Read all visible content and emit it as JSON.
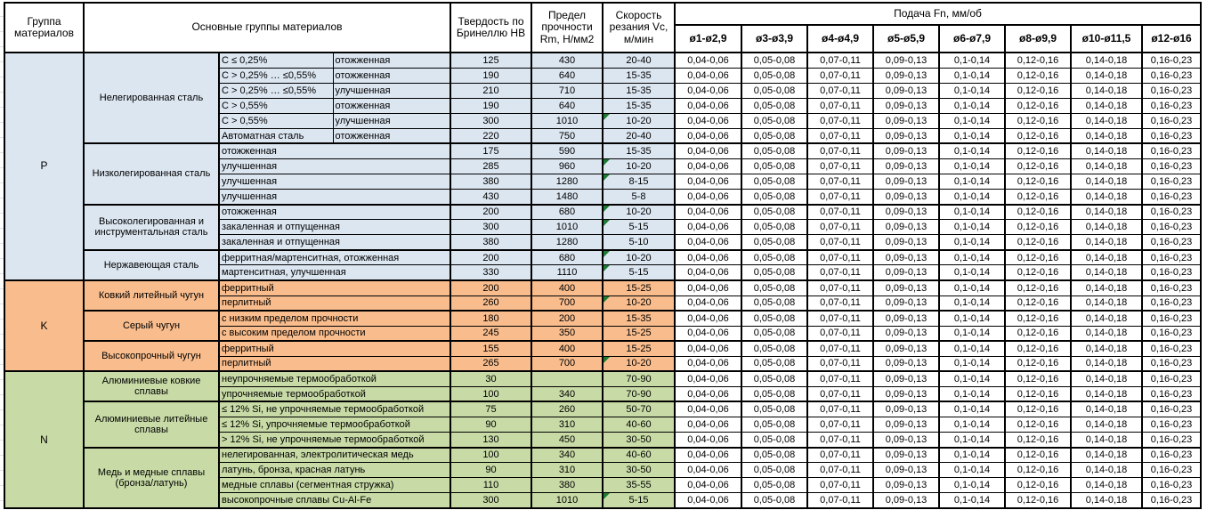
{
  "table": {
    "header": {
      "group": "Группа материалов",
      "main_groups": "Основные группы материалов",
      "hardness": "Твердость по Бринеллю НВ",
      "strength": "Предел прочности Rm, Н/мм2",
      "speed": "Скорость резания Vc, м/мин",
      "feed": "Подача Fn, мм/об",
      "feed_cols": [
        "ø1-ø2,9",
        "ø3-ø3,9",
        "ø4-ø4,9",
        "ø5-ø5,9",
        "ø6-ø7,9",
        "ø8-ø9,9",
        "ø10-ø11,5",
        "ø12-ø16"
      ]
    },
    "feed_values": [
      "0,04-0,06",
      "0,05-0,08",
      "0,07-0,11",
      "0,09-0,13",
      "0,1-0,14",
      "0,12-0,16",
      "0,14-0,18",
      "0,16-0,23"
    ],
    "colors": {
      "section_p": "#dce6f1",
      "section_k": "#f9bd8d",
      "section_n": "#c8dba6",
      "marker": "#1e7b34",
      "border": "#000000"
    },
    "sections": [
      {
        "code": "P",
        "color": "#dce6f1",
        "groups": [
          {
            "name": "Нелегированная сталь",
            "rows": [
              {
                "m1": "С ≤ 0,25%",
                "m2": "отожженная",
                "hb": "125",
                "rm": "430",
                "vc": "20-40",
                "mark": false
              },
              {
                "m1": "С > 0,25% … ≤0,55%",
                "m2": "отожженная",
                "hb": "190",
                "rm": "640",
                "vc": "15-35",
                "mark": false
              },
              {
                "m1": "С > 0,25% … ≤0,55%",
                "m2": "улучшенная",
                "hb": "210",
                "rm": "710",
                "vc": "15-35",
                "mark": false
              },
              {
                "m1": "С > 0,55%",
                "m2": "отожженная",
                "hb": "190",
                "rm": "640",
                "vc": "15-35",
                "mark": false
              },
              {
                "m1": "С > 0,55%",
                "m2": "улучшенная",
                "hb": "300",
                "rm": "1010",
                "vc": "10-20",
                "mark": true
              },
              {
                "m1": "Автоматная сталь",
                "m2": "отожженная",
                "hb": "220",
                "rm": "750",
                "vc": "20-40",
                "mark": false
              }
            ]
          },
          {
            "name": "Низколегированная сталь",
            "rows": [
              {
                "m1": "отожженная",
                "hb": "175",
                "rm": "590",
                "vc": "15-35",
                "mark": false
              },
              {
                "m1": "улучшенная",
                "hb": "285",
                "rm": "960",
                "vc": "10-20",
                "mark": true
              },
              {
                "m1": "улучшенная",
                "hb": "380",
                "rm": "1280",
                "vc": "8-15",
                "mark": true
              },
              {
                "m1": "улучшенная",
                "hb": "430",
                "rm": "1480",
                "vc": "5-8",
                "mark": false
              }
            ]
          },
          {
            "name": "Высоколегированная и инструментальная сталь",
            "rows": [
              {
                "m1": "отожженная",
                "hb": "200",
                "rm": "680",
                "vc": "10-20",
                "mark": true
              },
              {
                "m1": "закаленная и отпущенная",
                "hb": "300",
                "rm": "1010",
                "vc": "5-15",
                "mark": true
              },
              {
                "m1": "закаленная и отпущенная",
                "hb": "380",
                "rm": "1280",
                "vc": "5-10",
                "mark": false
              }
            ]
          },
          {
            "name": "Нержавеющая сталь",
            "rows": [
              {
                "m1": "ферритная/мартенситная, отожженная",
                "hb": "200",
                "rm": "680",
                "vc": "10-20",
                "mark": true
              },
              {
                "m1": "мартенситная, улучшенная",
                "hb": "330",
                "rm": "1110",
                "vc": "5-15",
                "mark": true
              }
            ]
          }
        ]
      },
      {
        "code": "K",
        "color": "#f9bd8d",
        "groups": [
          {
            "name": "Ковкий литейный чугун",
            "rows": [
              {
                "m1": "ферритный",
                "hb": "200",
                "rm": "400",
                "vc": "15-25",
                "mark": false
              },
              {
                "m1": "перлитный",
                "hb": "260",
                "rm": "700",
                "vc": "10-20",
                "mark": true
              }
            ]
          },
          {
            "name": "Серый чугун",
            "rows": [
              {
                "m1": "с низким пределом прочности",
                "hb": "180",
                "rm": "200",
                "vc": "15-35",
                "mark": false
              },
              {
                "m1": "с высоким пределом прочности",
                "hb": "245",
                "rm": "350",
                "vc": "15-25",
                "mark": false
              }
            ]
          },
          {
            "name": "Высокопрочный чугун",
            "rows": [
              {
                "m1": "ферритный",
                "hb": "155",
                "rm": "400",
                "vc": "15-25",
                "mark": false
              },
              {
                "m1": "перлитный",
                "hb": "265",
                "rm": "700",
                "vc": "10-20",
                "mark": true
              }
            ]
          }
        ]
      },
      {
        "code": "N",
        "color": "#c8dba6",
        "groups": [
          {
            "name": "Алюминиевые ковкие сплавы",
            "rows": [
              {
                "m1": "неупрочняемые термообработкой",
                "hb": "30",
                "rm": "",
                "vc": "70-90",
                "mark": false
              },
              {
                "m1": "упрочняемые термообработкой",
                "hb": "100",
                "rm": "340",
                "vc": "70-90",
                "mark": false
              }
            ]
          },
          {
            "name": "Алюминиевые литейные сплавы",
            "rows": [
              {
                "m1": "≤ 12% Si, не упрочняемые термообработкой",
                "hb": "75",
                "rm": "260",
                "vc": "50-70",
                "mark": false
              },
              {
                "m1": "≤ 12% Si, упрочняемые термообработкой",
                "hb": "90",
                "rm": "310",
                "vc": "40-60",
                "mark": false
              },
              {
                "m1": "> 12% Si, не упрочняемые термообработкой",
                "hb": "130",
                "rm": "450",
                "vc": "30-50",
                "mark": false
              }
            ]
          },
          {
            "name": "Медь и медные сплавы (бронза/латунь)",
            "rows": [
              {
                "m1": "нелегированная, электролитическая медь",
                "hb": "100",
                "rm": "340",
                "vc": "40-60",
                "mark": false
              },
              {
                "m1": "латунь, бронза, красная латунь",
                "hb": "90",
                "rm": "310",
                "vc": "30-50",
                "mark": false
              },
              {
                "m1": "медные сплавы (сегментная стружка)",
                "hb": "110",
                "rm": "380",
                "vc": "35-55",
                "mark": false
              },
              {
                "m1": "высокопрочные сплавы Cu-Al-Fe",
                "hb": "300",
                "rm": "1010",
                "vc": "5-15",
                "mark": true
              }
            ]
          }
        ]
      }
    ]
  }
}
